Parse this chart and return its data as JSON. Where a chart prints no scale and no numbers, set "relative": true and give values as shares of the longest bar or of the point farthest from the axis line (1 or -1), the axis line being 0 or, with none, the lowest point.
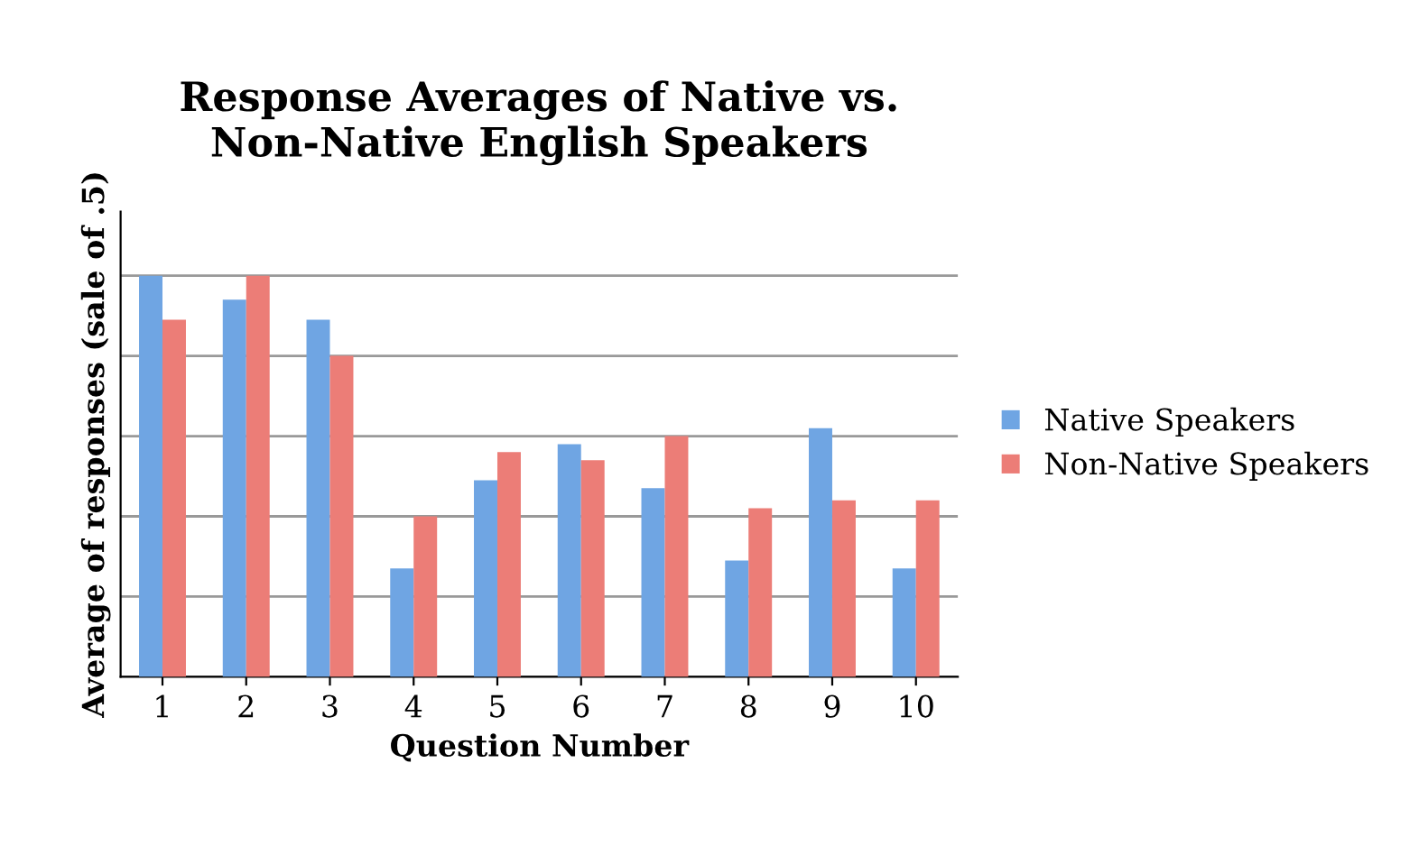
{
  "chart_data": {
    "type": "bar",
    "title": "Response Averages of Native vs.\nNon-Native English Speakers",
    "xlabel": "Question Number",
    "ylabel": "Average of responses (sale of .5)",
    "categories": [
      "1",
      "2",
      "3",
      "4",
      "5",
      "6",
      "7",
      "8",
      "9",
      "10"
    ],
    "series": [
      {
        "name": "Native Speakers",
        "color": "#6fa5e3",
        "values": [
          1.0,
          0.94,
          0.89,
          0.27,
          0.49,
          0.58,
          0.47,
          0.29,
          0.62,
          0.27
        ]
      },
      {
        "name": "Non-Native Speakers",
        "color": "#ec7d77",
        "values": [
          0.89,
          1.0,
          0.8,
          0.4,
          0.56,
          0.54,
          0.6,
          0.42,
          0.44,
          0.44
        ]
      }
    ],
    "relative": true,
    "grid": "y",
    "legend": "right"
  }
}
